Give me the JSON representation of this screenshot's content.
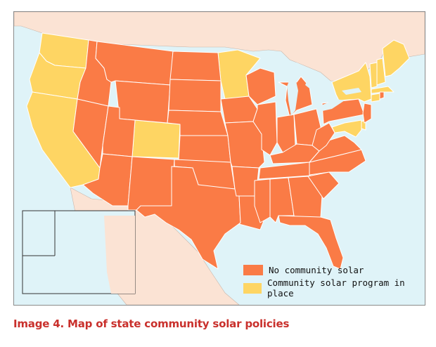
{
  "colors": {
    "no_policy": "#fa7b46",
    "policy": "#fed563",
    "water": "#dff3f8",
    "land_other": "#fbe3d4",
    "border": "#ffffff",
    "caption": "#c9302c"
  },
  "legend": {
    "no_policy_label": "No community solar",
    "policy_label": "Community solar program in place"
  },
  "caption": "Image 4. Map of state community solar policies",
  "states": [
    {
      "id": "WA",
      "policy": true
    },
    {
      "id": "OR",
      "policy": true
    },
    {
      "id": "CA",
      "policy": true
    },
    {
      "id": "CO",
      "policy": true
    },
    {
      "id": "MN",
      "policy": true
    },
    {
      "id": "NY",
      "policy": true
    },
    {
      "id": "VT",
      "policy": true
    },
    {
      "id": "NH",
      "policy": true
    },
    {
      "id": "ME",
      "policy": true
    },
    {
      "id": "MA",
      "policy": true
    },
    {
      "id": "CT",
      "policy": true
    },
    {
      "id": "DE",
      "policy": true
    },
    {
      "id": "MD",
      "policy": true
    },
    {
      "id": "HI",
      "policy": true
    },
    {
      "id": "ID",
      "policy": false
    },
    {
      "id": "NV",
      "policy": false
    },
    {
      "id": "MT",
      "policy": false
    },
    {
      "id": "WY",
      "policy": false
    },
    {
      "id": "UT",
      "policy": false
    },
    {
      "id": "AZ",
      "policy": false
    },
    {
      "id": "NM",
      "policy": false
    },
    {
      "id": "ND",
      "policy": false
    },
    {
      "id": "SD",
      "policy": false
    },
    {
      "id": "NE",
      "policy": false
    },
    {
      "id": "KS",
      "policy": false
    },
    {
      "id": "OK",
      "policy": false
    },
    {
      "id": "TX",
      "policy": false
    },
    {
      "id": "IA",
      "policy": false
    },
    {
      "id": "MO",
      "policy": false
    },
    {
      "id": "AR",
      "policy": false
    },
    {
      "id": "LA",
      "policy": false
    },
    {
      "id": "WI",
      "policy": false
    },
    {
      "id": "IL",
      "policy": false
    },
    {
      "id": "MI",
      "policy": false
    },
    {
      "id": "IN",
      "policy": false
    },
    {
      "id": "OH",
      "policy": false
    },
    {
      "id": "KY",
      "policy": false
    },
    {
      "id": "TN",
      "policy": false
    },
    {
      "id": "MS",
      "policy": false
    },
    {
      "id": "AL",
      "policy": false
    },
    {
      "id": "GA",
      "policy": false
    },
    {
      "id": "FL",
      "policy": false
    },
    {
      "id": "SC",
      "policy": false
    },
    {
      "id": "NC",
      "policy": false
    },
    {
      "id": "VA",
      "policy": false
    },
    {
      "id": "WV",
      "policy": false
    },
    {
      "id": "PA",
      "policy": false
    },
    {
      "id": "NJ",
      "policy": false
    },
    {
      "id": "RI",
      "policy": false
    },
    {
      "id": "AK",
      "policy": false
    }
  ]
}
